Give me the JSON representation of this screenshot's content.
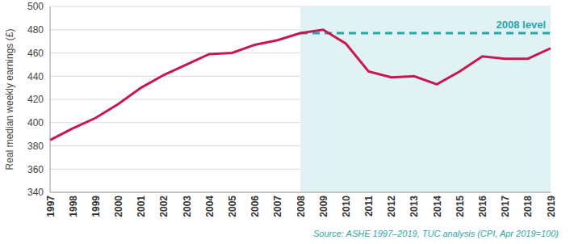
{
  "chart_data": {
    "type": "line",
    "y_label": "Real median weekly earnings (£)",
    "source": "Source: ASHE 1997–2019, TUC analysis (CPI, Apr 2019=100)",
    "categories": [
      "1997",
      "1998",
      "1999",
      "2000",
      "2001",
      "2002",
      "2003",
      "2004",
      "2005",
      "2006",
      "2007",
      "2008",
      "2009",
      "2010",
      "2011",
      "2012",
      "2013",
      "2014",
      "2015",
      "2016",
      "2017",
      "2018",
      "2019"
    ],
    "series": [
      {
        "name": "Real median weekly earnings",
        "color": "#c8174f",
        "values": [
          385,
          395,
          404,
          416,
          430,
          441,
          450,
          459,
          460,
          467,
          471,
          477,
          480,
          468,
          444,
          439,
          440,
          433,
          444,
          457,
          455,
          455,
          464
        ]
      }
    ],
    "reference_line": {
      "label": "2008 level",
      "value": 477,
      "from": "2008",
      "to": "2019",
      "color": "#2aa6a8",
      "line_style": "dashed"
    },
    "shaded_region": {
      "from": "2008",
      "to": "2019",
      "color": "#e1f2f4"
    },
    "ylim": [
      340,
      500
    ],
    "yticks": [
      340,
      360,
      380,
      400,
      420,
      440,
      460,
      480,
      500
    ],
    "grid": true
  }
}
